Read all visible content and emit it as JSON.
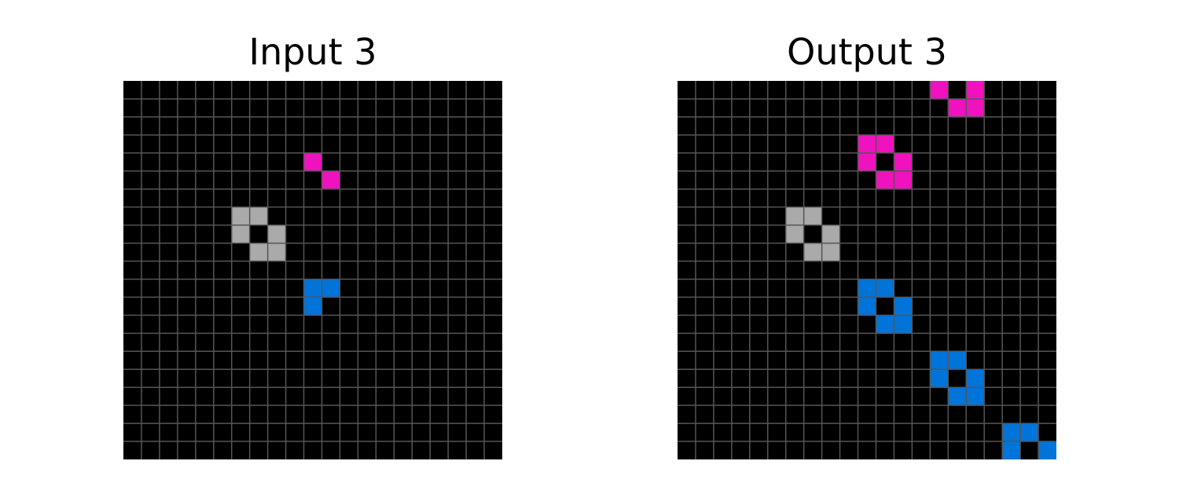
{
  "colors": {
    "0": "#000000",
    "1": "#0074D9",
    "5": "#AAAAAA",
    "6": "#F012BE",
    "grid_line": "#555555",
    "background": "#FFFFFF"
  },
  "panels": [
    {
      "title": "Input 3",
      "rows": 21,
      "cols": 21,
      "cells": [
        {
          "r": 4,
          "c": 10,
          "v": 6
        },
        {
          "r": 5,
          "c": 11,
          "v": 6
        },
        {
          "r": 7,
          "c": 6,
          "v": 5
        },
        {
          "r": 7,
          "c": 7,
          "v": 5
        },
        {
          "r": 8,
          "c": 6,
          "v": 5
        },
        {
          "r": 8,
          "c": 8,
          "v": 5
        },
        {
          "r": 9,
          "c": 7,
          "v": 5
        },
        {
          "r": 9,
          "c": 8,
          "v": 5
        },
        {
          "r": 11,
          "c": 10,
          "v": 1
        },
        {
          "r": 11,
          "c": 11,
          "v": 1
        },
        {
          "r": 12,
          "c": 10,
          "v": 1
        }
      ]
    },
    {
      "title": "Output 3",
      "rows": 21,
      "cols": 21,
      "cells": [
        {
          "r": 0,
          "c": 14,
          "v": 6
        },
        {
          "r": 0,
          "c": 16,
          "v": 6
        },
        {
          "r": 1,
          "c": 15,
          "v": 6
        },
        {
          "r": 1,
          "c": 16,
          "v": 6
        },
        {
          "r": 3,
          "c": 10,
          "v": 6
        },
        {
          "r": 3,
          "c": 11,
          "v": 6
        },
        {
          "r": 4,
          "c": 10,
          "v": 6
        },
        {
          "r": 4,
          "c": 12,
          "v": 6
        },
        {
          "r": 5,
          "c": 11,
          "v": 6
        },
        {
          "r": 5,
          "c": 12,
          "v": 6
        },
        {
          "r": 7,
          "c": 6,
          "v": 5
        },
        {
          "r": 7,
          "c": 7,
          "v": 5
        },
        {
          "r": 8,
          "c": 6,
          "v": 5
        },
        {
          "r": 8,
          "c": 8,
          "v": 5
        },
        {
          "r": 9,
          "c": 7,
          "v": 5
        },
        {
          "r": 9,
          "c": 8,
          "v": 5
        },
        {
          "r": 11,
          "c": 10,
          "v": 1
        },
        {
          "r": 11,
          "c": 11,
          "v": 1
        },
        {
          "r": 12,
          "c": 10,
          "v": 1
        },
        {
          "r": 12,
          "c": 12,
          "v": 1
        },
        {
          "r": 13,
          "c": 11,
          "v": 1
        },
        {
          "r": 13,
          "c": 12,
          "v": 1
        },
        {
          "r": 15,
          "c": 14,
          "v": 1
        },
        {
          "r": 15,
          "c": 15,
          "v": 1
        },
        {
          "r": 16,
          "c": 14,
          "v": 1
        },
        {
          "r": 16,
          "c": 16,
          "v": 1
        },
        {
          "r": 17,
          "c": 15,
          "v": 1
        },
        {
          "r": 17,
          "c": 16,
          "v": 1
        },
        {
          "r": 19,
          "c": 18,
          "v": 1
        },
        {
          "r": 19,
          "c": 19,
          "v": 1
        },
        {
          "r": 20,
          "c": 18,
          "v": 1
        },
        {
          "r": 20,
          "c": 20,
          "v": 1
        }
      ]
    }
  ]
}
